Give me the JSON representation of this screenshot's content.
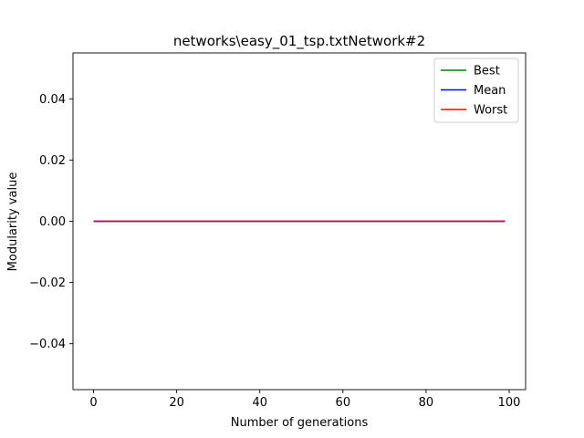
{
  "chart_data": {
    "type": "line",
    "title": "networks\\easy_01_tsp.txtNetwork#2",
    "xlabel": "Number of generations",
    "ylabel": "Modularity value",
    "xlim": [
      -4.95,
      103.95
    ],
    "ylim": [
      -0.055,
      0.055
    ],
    "xticks": [
      0,
      20,
      40,
      60,
      80,
      100
    ],
    "xtick_labels": [
      "0",
      "20",
      "40",
      "60",
      "80",
      "100"
    ],
    "yticks": [
      -0.04,
      -0.02,
      0.0,
      0.02,
      0.04
    ],
    "ytick_labels": [
      "−0.04",
      "−0.02",
      "0.00",
      "0.02",
      "0.04"
    ],
    "grid": false,
    "legend_position": "top-right",
    "x_range": [
      0,
      99
    ],
    "series": [
      {
        "name": "Best",
        "color": "#008000",
        "x": [
          0,
          99
        ],
        "y": [
          0.0,
          0.0
        ]
      },
      {
        "name": "Mean",
        "color": "#0000ff",
        "x": [
          0,
          99
        ],
        "y": [
          0.0,
          0.0
        ]
      },
      {
        "name": "Worst",
        "color": "#ff0000",
        "x": [
          0,
          99
        ],
        "y": [
          0.0,
          0.0
        ]
      }
    ]
  }
}
